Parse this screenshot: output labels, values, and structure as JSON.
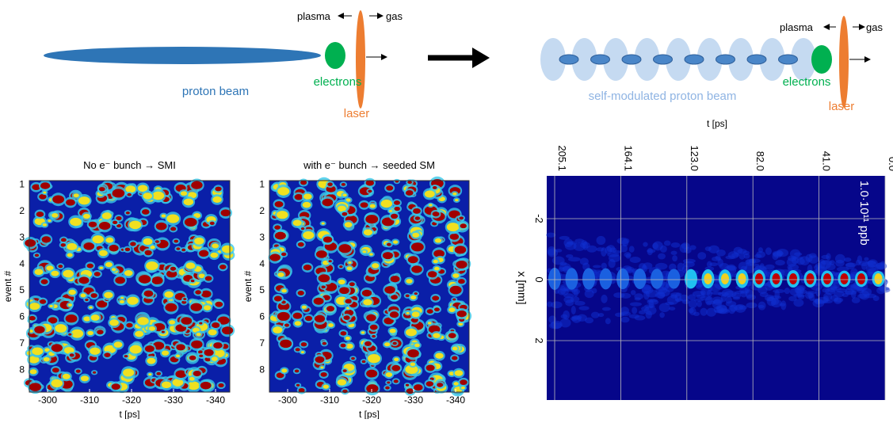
{
  "diagram": {
    "before": {
      "plasma": "plasma",
      "gas": "gas",
      "beam": "proton beam",
      "electrons": "electrons",
      "laser": "laser"
    },
    "after": {
      "plasma": "plasma",
      "gas": "gas",
      "beam": "self-modulated proton beam",
      "electrons": "electrons",
      "laser": "laser"
    }
  },
  "panels": [
    {
      "title": "No e⁻ bunch → SMI",
      "ylabel": "event #",
      "xlabel": "t [ps]",
      "yticks": [
        "1",
        "2",
        "3",
        "4",
        "5",
        "6",
        "7",
        "8"
      ],
      "xticks": [
        "-300",
        "-310",
        "-320",
        "-330",
        "-340"
      ]
    },
    {
      "title": "with e⁻ bunch → seeded SM",
      "ylabel": "event #",
      "xlabel": "t [ps]",
      "yticks": [
        "1",
        "2",
        "3",
        "4",
        "5",
        "6",
        "7",
        "8"
      ],
      "xticks": [
        "-300",
        "-310",
        "-320",
        "-330",
        "-340"
      ]
    }
  ],
  "image": {
    "xlabel": "t [ps]",
    "ylabel": "x [mm]",
    "annotation": "1.0·10¹¹ ppb",
    "xticks": [
      "205.1",
      "164.1",
      "123.0",
      "82.0",
      "41.0",
      "0.0"
    ],
    "yticks": [
      "-2",
      "0",
      "2"
    ]
  }
}
